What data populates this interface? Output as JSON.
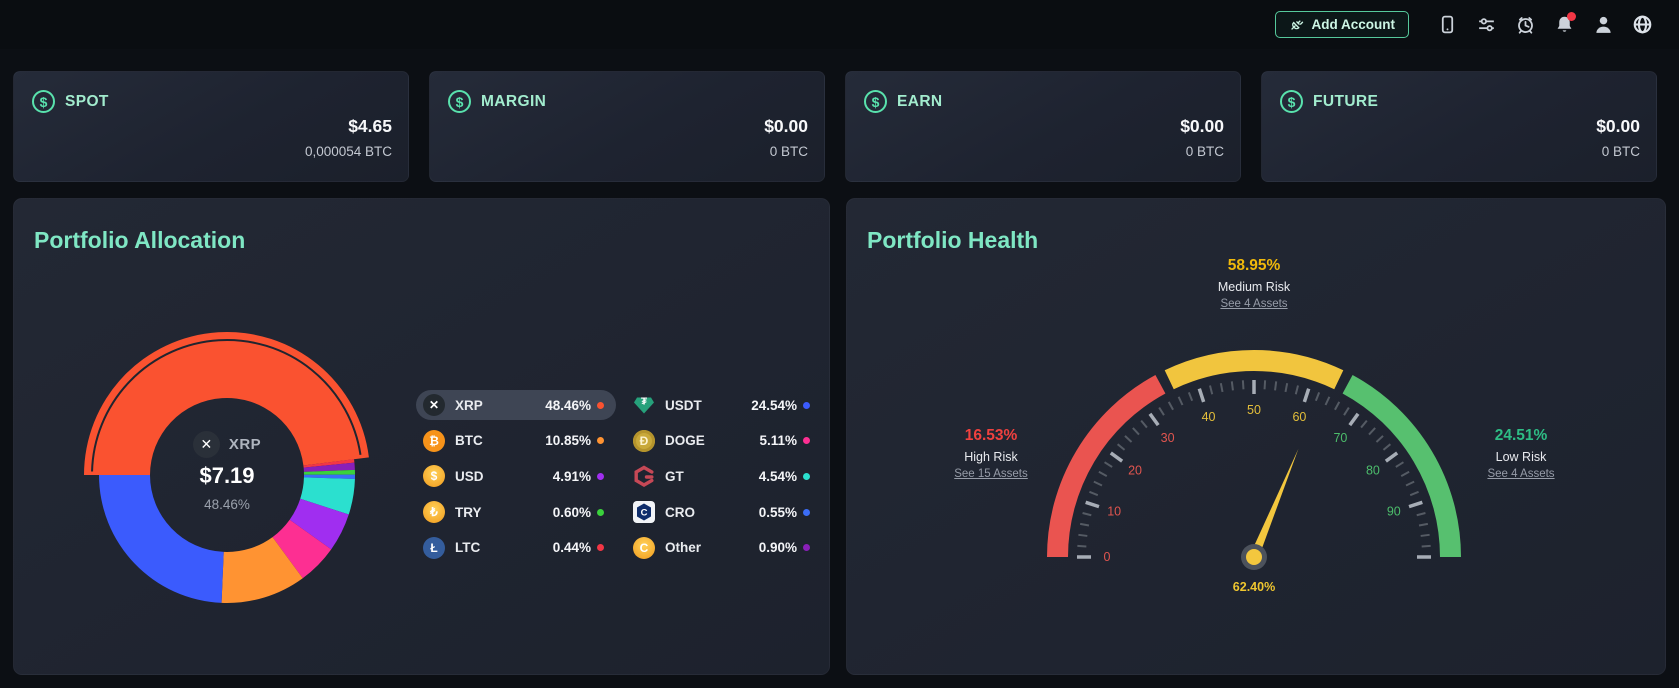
{
  "topbar": {
    "add_account_label": "Add Account"
  },
  "accounts": [
    {
      "label": "SPOT",
      "usd": "$4.65",
      "btc": "0,000054 BTC"
    },
    {
      "label": "MARGIN",
      "usd": "$0.00",
      "btc": "0 BTC"
    },
    {
      "label": "EARN",
      "usd": "$0.00",
      "btc": "0 BTC"
    },
    {
      "label": "FUTURE",
      "usd": "$0.00",
      "btc": "0 BTC"
    }
  ],
  "allocation": {
    "title": "Portfolio Allocation",
    "center": {
      "coin": "XRP",
      "value": "$7.19",
      "percent": "48.46%"
    },
    "legend": {
      "left": [
        {
          "coin": "XRP",
          "percent": "48.46%",
          "dot": "#fa5230",
          "highlighted": true
        },
        {
          "coin": "BTC",
          "percent": "10.85%",
          "dot": "#ff9332",
          "highlighted": false
        },
        {
          "coin": "USD",
          "percent": "4.91%",
          "dot": "#a02ef0",
          "highlighted": false
        },
        {
          "coin": "TRY",
          "percent": "0.60%",
          "dot": "#3ad23c",
          "highlighted": false
        },
        {
          "coin": "LTC",
          "percent": "0.44%",
          "dot": "#f23645",
          "highlighted": false
        }
      ],
      "right": [
        {
          "coin": "USDT",
          "percent": "24.54%",
          "dot": "#3b5bfd",
          "highlighted": false
        },
        {
          "coin": "DOGE",
          "percent": "5.11%",
          "dot": "#fd2f92",
          "highlighted": false
        },
        {
          "coin": "GT",
          "percent": "4.54%",
          "dot": "#2be0cf",
          "highlighted": false
        },
        {
          "coin": "CRO",
          "percent": "0.55%",
          "dot": "#3b6df7",
          "highlighted": false
        },
        {
          "coin": "Other",
          "percent": "0.90%",
          "dot": "#8a1fb8",
          "highlighted": false
        }
      ]
    }
  },
  "health": {
    "title": "Portfolio Health",
    "value_label": "62.40%",
    "callouts": {
      "medium": {
        "percent": "58.95%",
        "label": "Medium Risk",
        "link": "See 4 Assets",
        "color": "#f0b90b"
      },
      "high": {
        "percent": "16.53%",
        "label": "High Risk",
        "link": "See 15 Assets",
        "color": "#f0413f"
      },
      "low": {
        "percent": "24.51%",
        "label": "Low Risk",
        "link": "See 4 Assets",
        "color": "#2ebd85"
      }
    }
  },
  "chart_data": [
    {
      "type": "pie",
      "title": "Portfolio Allocation",
      "donut": true,
      "center_label": {
        "coin": "XRP",
        "value": "$7.19",
        "percent": "48.46%"
      },
      "segments": [
        {
          "label": "XRP",
          "value": 48.46,
          "color": "#fa5230",
          "exploded": true
        },
        {
          "label": "LTC",
          "value": 0.44,
          "color": "#f23645",
          "exploded": false
        },
        {
          "label": "Other",
          "value": 0.9,
          "color": "#8a1fb8",
          "exploded": false
        },
        {
          "label": "TRY",
          "value": 0.6,
          "color": "#3ad23c",
          "exploded": false
        },
        {
          "label": "CRO",
          "value": 0.55,
          "color": "#3b6df7",
          "exploded": false
        },
        {
          "label": "GT",
          "value": 4.54,
          "color": "#2be0cf",
          "exploded": false
        },
        {
          "label": "USD",
          "value": 4.91,
          "color": "#a02ef0",
          "exploded": false
        },
        {
          "label": "DOGE",
          "value": 5.11,
          "color": "#fd2f92",
          "exploded": false
        },
        {
          "label": "BTC",
          "value": 10.85,
          "color": "#ff9332",
          "exploded": false
        },
        {
          "label": "USDT",
          "value": 24.54,
          "color": "#3b5bfd",
          "exploded": false
        }
      ]
    },
    {
      "type": "gauge",
      "title": "Portfolio Health",
      "min": 0,
      "max": 100,
      "value": 62.4,
      "value_label": "62.40%",
      "bands": [
        {
          "from": 0,
          "to": 34.2,
          "color": "#ea5450",
          "label": "High Risk"
        },
        {
          "from": 35.8,
          "to": 64.2,
          "color": "#f1c53e",
          "label": "Medium Risk"
        },
        {
          "from": 65.8,
          "to": 100,
          "color": "#57c06f",
          "label": "Low Risk"
        }
      ],
      "tick_step_minor": 2,
      "tick_step_major": 10,
      "tick_labels": [
        0,
        10,
        20,
        30,
        40,
        50,
        60,
        70,
        80,
        90
      ],
      "tick_label_colors": {
        "red": "#e0554f",
        "yellow": "#e3be3a",
        "green": "#4cbd6b"
      },
      "needle_color": "#f3c73e"
    }
  ]
}
